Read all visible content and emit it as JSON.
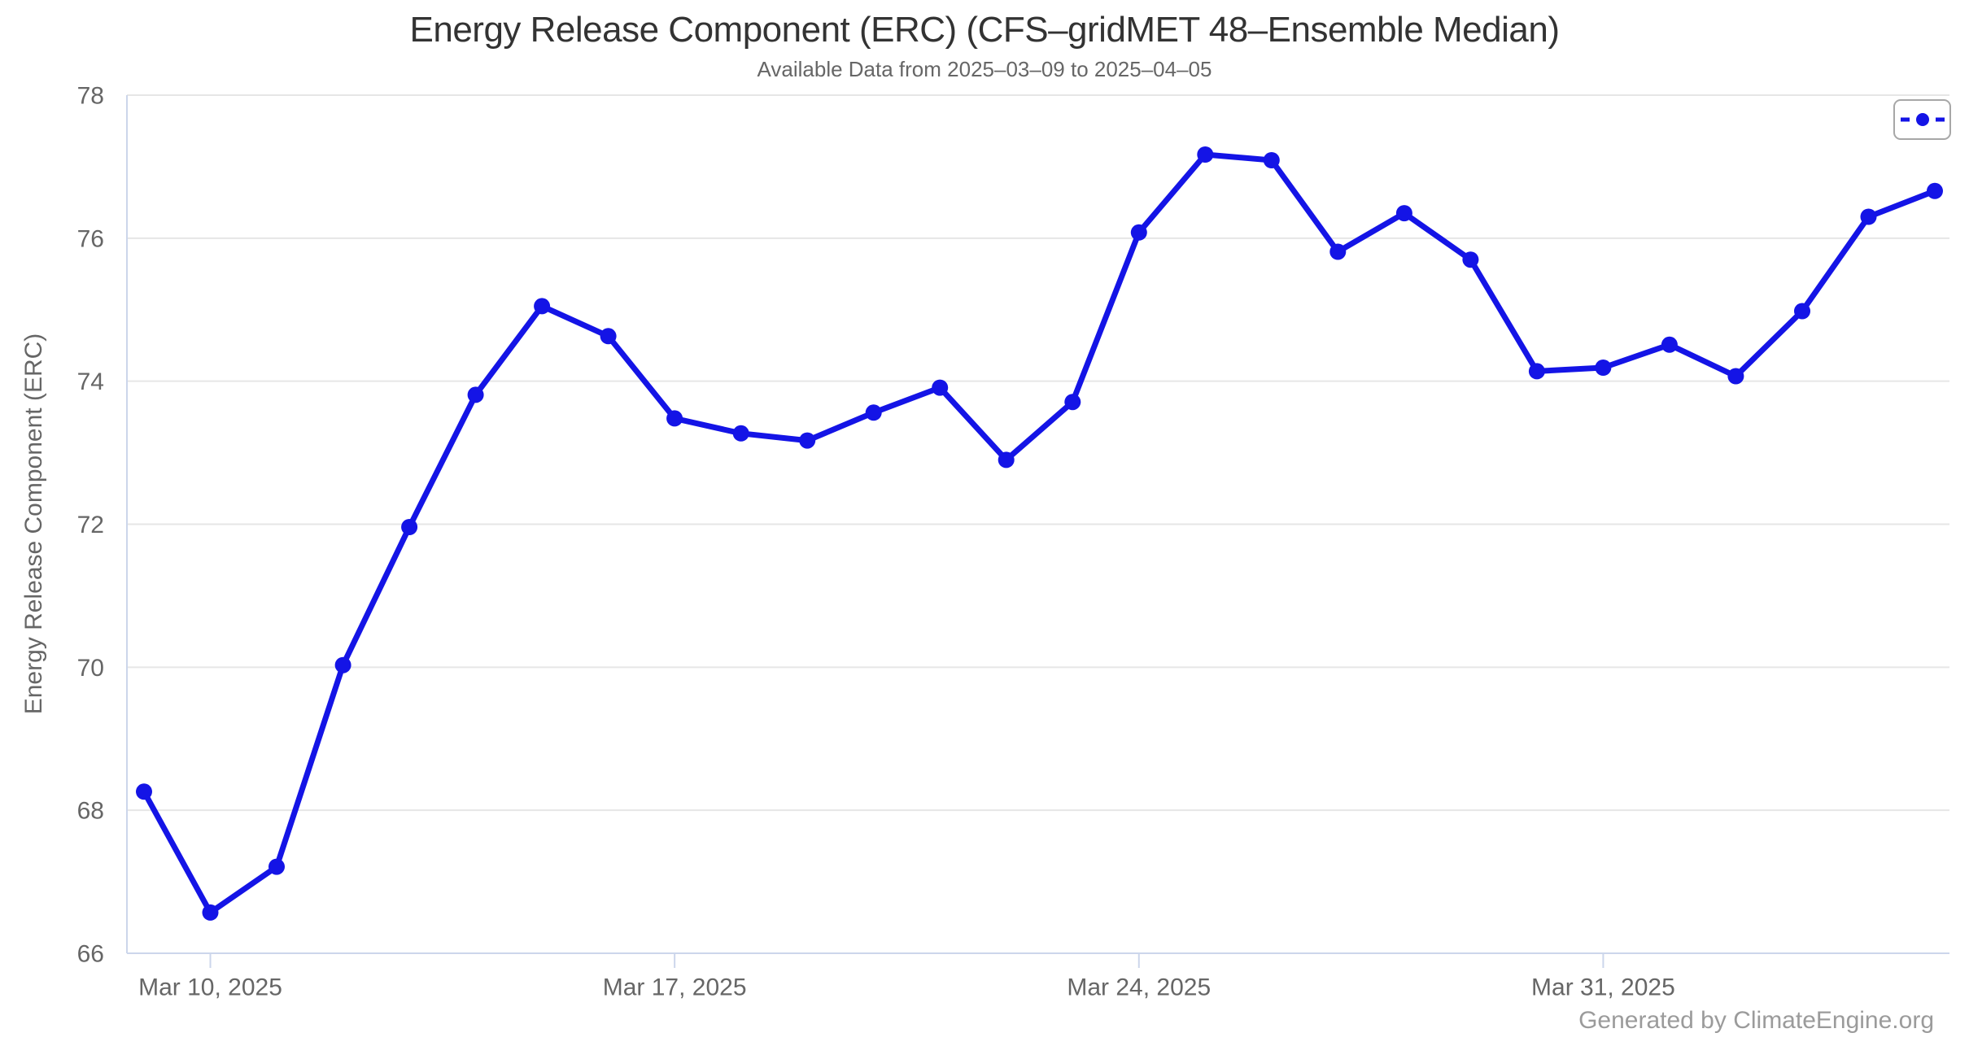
{
  "header": {
    "title": "Energy Release Component (ERC) (CFS–gridMET 48–Ensemble Median)",
    "subtitle": "Available Data from 2025–03–09 to 2025–04–05"
  },
  "footer": {
    "credits": "Generated by ClimateEngine.org"
  },
  "legend": {
    "position": "top-right",
    "marker_icon": "dash-dot-dash-line-sample",
    "has_text": false
  },
  "colors": {
    "line": "#1414e6",
    "marker": "#1414e6",
    "grid": "#e6e6e6",
    "axis": "#ccd6eb",
    "tick_label": "#666666",
    "legend_border": "#a7a7a7"
  },
  "chart_data": {
    "type": "line",
    "title": "Energy Release Component (ERC) (CFS–gridMET 48–Ensemble Median)",
    "subtitle": "Available Data from 2025–03–09 to 2025–04–05",
    "xlabel": "",
    "ylabel": "Energy Release Component (ERC)",
    "ylim": [
      66,
      78
    ],
    "yticks": [
      66,
      68,
      70,
      72,
      74,
      76,
      78
    ],
    "grid": "horizontal-only",
    "legend_position": "top-right-floating",
    "x": [
      "2025-03-09",
      "2025-03-10",
      "2025-03-11",
      "2025-03-12",
      "2025-03-13",
      "2025-03-14",
      "2025-03-15",
      "2025-03-16",
      "2025-03-17",
      "2025-03-18",
      "2025-03-19",
      "2025-03-20",
      "2025-03-21",
      "2025-03-22",
      "2025-03-23",
      "2025-03-24",
      "2025-03-25",
      "2025-03-26",
      "2025-03-27",
      "2025-03-28",
      "2025-03-29",
      "2025-03-30",
      "2025-03-31",
      "2025-04-01",
      "2025-04-02",
      "2025-04-03",
      "2025-04-04",
      "2025-04-05"
    ],
    "xtick_indices": [
      1,
      8,
      15,
      22
    ],
    "xtick_labels": [
      "Mar 10, 2025",
      "Mar 17, 2025",
      "Mar 24, 2025",
      "Mar 31, 2025"
    ],
    "series": [
      {
        "marker": "circle",
        "color": "#1414e6",
        "values": [
          68.26,
          66.57,
          67.21,
          70.03,
          71.96,
          73.81,
          75.05,
          74.63,
          73.48,
          73.27,
          73.17,
          73.56,
          73.91,
          72.9,
          73.71,
          76.08,
          77.17,
          77.09,
          75.81,
          76.35,
          75.7,
          74.14,
          74.19,
          74.51,
          74.07,
          74.98,
          76.3,
          76.66
        ]
      }
    ]
  }
}
